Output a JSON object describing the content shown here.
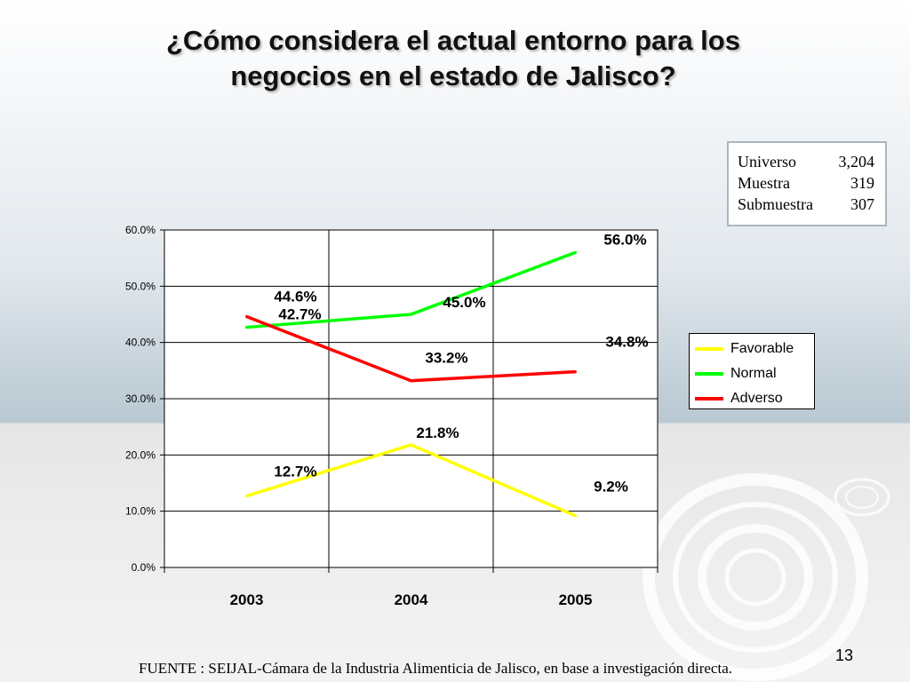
{
  "title": {
    "line1": "¿Cómo considera el  actual entorno para los",
    "line2": "negocios en el estado de Jalisco?"
  },
  "info_box": {
    "rows": [
      {
        "label": "Universo",
        "value": "3,204"
      },
      {
        "label": "Muestra",
        "value": "319"
      },
      {
        "label": "Submuestra",
        "value": "307"
      }
    ]
  },
  "footer": {
    "source": "FUENTE : SEIJAL-Cámara de la Industria Alimenticia de Jalisco,  en base a investigación directa.",
    "page_number": "13"
  },
  "chart_data": {
    "type": "line",
    "categories": [
      "2003",
      "2004",
      "2005"
    ],
    "series": [
      {
        "name": "Favorable",
        "color": "#ffff00",
        "values": [
          12.7,
          21.8,
          9.2
        ],
        "labels": [
          "12.7%",
          "21.8%",
          "9.2%"
        ]
      },
      {
        "name": "Normal",
        "color": "#00ff00",
        "values": [
          42.7,
          45.0,
          56.0
        ],
        "labels": [
          "42.7%",
          "45.0%",
          "56.0%"
        ]
      },
      {
        "name": "Adverso",
        "color": "#ff0000",
        "values": [
          44.6,
          33.2,
          34.8
        ],
        "labels": [
          "44.6%",
          "33.2%",
          "34.8%"
        ]
      }
    ],
    "ylim": [
      0,
      60
    ],
    "yticks": [
      "0.0%",
      "10.0%",
      "20.0%",
      "30.0%",
      "40.0%",
      "50.0%",
      "60.0%"
    ],
    "grid": true,
    "legend_position": "right"
  }
}
